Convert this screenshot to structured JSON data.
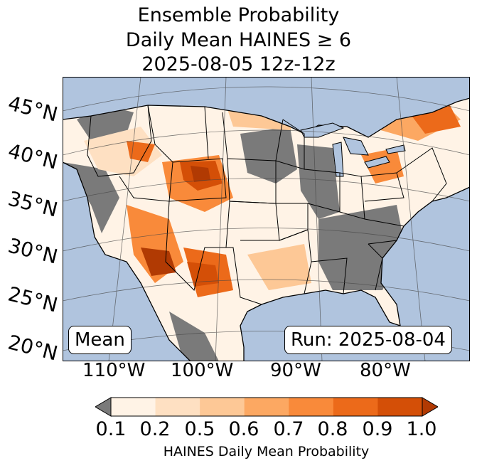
{
  "title": {
    "line1": "Ensemble Probability",
    "line2": "Daily Mean HAINES ≥ 6",
    "line3": "2025-08-05 12z-12z"
  },
  "map": {
    "lat_labels": [
      "45°N",
      "40°N",
      "35°N",
      "30°N",
      "25°N",
      "20°N"
    ],
    "lon_labels": [
      "110°W",
      "100°W",
      "90°W",
      "80°W"
    ],
    "stat_label": "Mean",
    "run_label": "Run: 2025-08-04",
    "colors": {
      "ocean": "#b0c4de",
      "missing": "#7a7a7a",
      "lakes": "#b0c4de",
      "border": "#000000"
    }
  },
  "colorbar": {
    "ticks": [
      "0.1",
      "0.2",
      "0.5",
      "0.6",
      "0.7",
      "0.8",
      "0.9",
      "1.0"
    ],
    "colors": [
      "#fff3e6",
      "#fee0c2",
      "#fdc896",
      "#fca862",
      "#f98a3a",
      "#ec6a1a",
      "#d44f07",
      "#b13a03"
    ],
    "under_color": "#7a7a7a",
    "label": "HAINES Daily Mean Probability"
  }
}
